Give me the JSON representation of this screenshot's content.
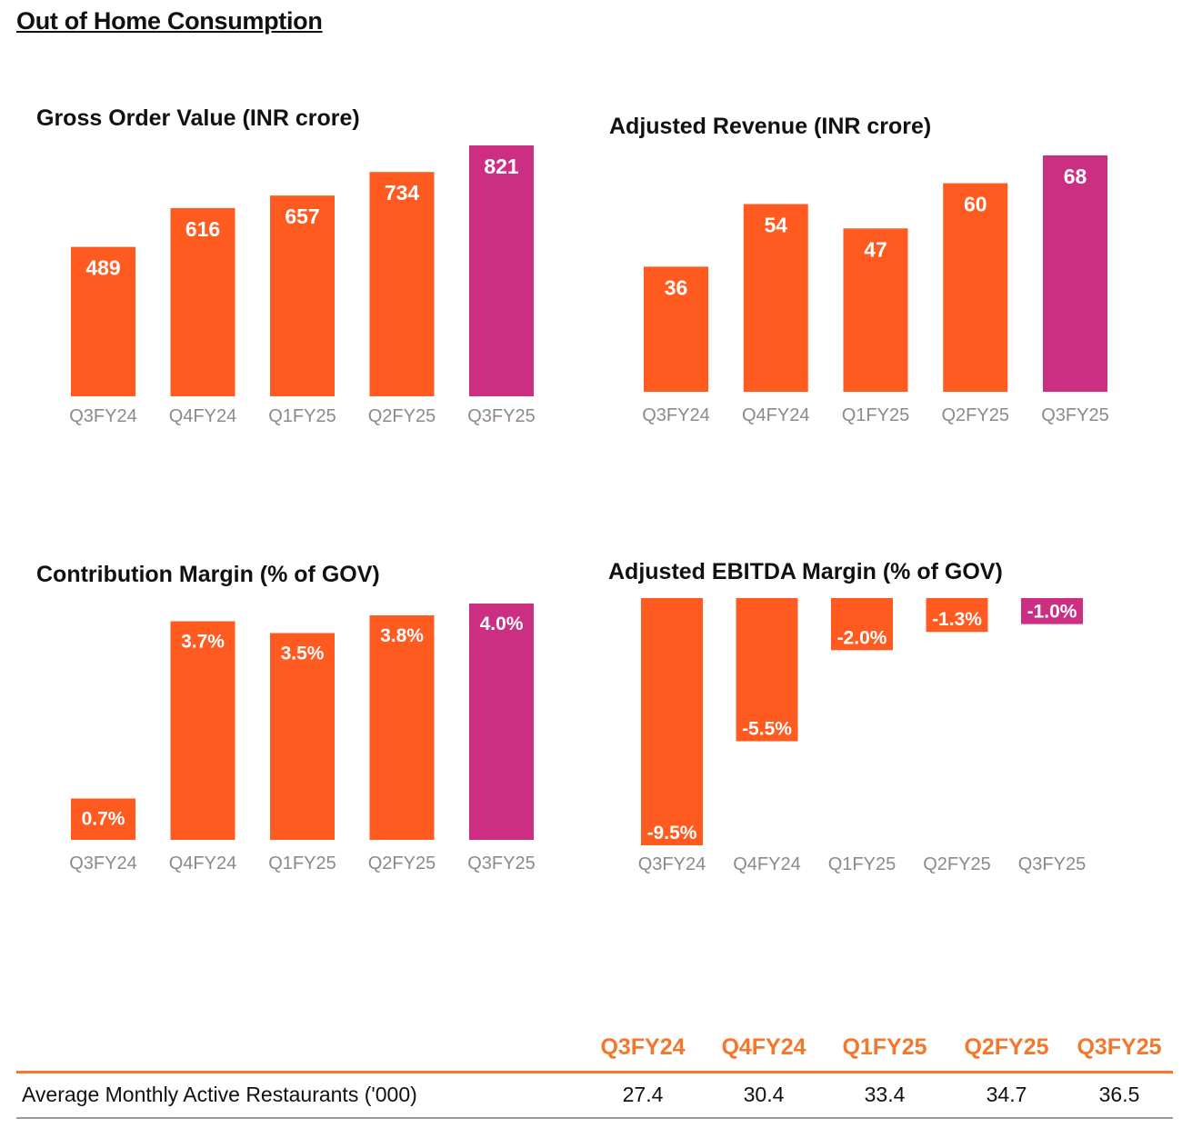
{
  "page_title": "Out of Home Consumption",
  "colors": {
    "bar": "#ff5a1f",
    "highlight": "#cc2f82",
    "axis_text": "#8a8a8a",
    "table_head": "#f5772c"
  },
  "chart_data": [
    {
      "type": "bar",
      "title": "Gross Order Value (INR crore)",
      "categories": [
        "Q3FY24",
        "Q4FY24",
        "Q1FY25",
        "Q2FY25",
        "Q3FY25"
      ],
      "values": [
        489,
        616,
        657,
        734,
        821
      ],
      "labels": [
        "489",
        "616",
        "657",
        "734",
        "821"
      ],
      "highlight_index": 4,
      "ylim": [
        0,
        821
      ]
    },
    {
      "type": "bar",
      "title": "Adjusted Revenue (INR crore)",
      "categories": [
        "Q3FY24",
        "Q4FY24",
        "Q1FY25",
        "Q2FY25",
        "Q3FY25"
      ],
      "values": [
        36,
        54,
        47,
        60,
        68
      ],
      "labels": [
        "36",
        "54",
        "47",
        "60",
        "68"
      ],
      "highlight_index": 4,
      "ylim": [
        0,
        68
      ]
    },
    {
      "type": "bar",
      "title": "Contribution Margin (% of GOV)",
      "categories": [
        "Q3FY24",
        "Q4FY24",
        "Q1FY25",
        "Q2FY25",
        "Q3FY25"
      ],
      "values": [
        0.7,
        3.7,
        3.5,
        3.8,
        4.0
      ],
      "labels": [
        "0.7%",
        "3.7%",
        "3.5%",
        "3.8%",
        "4.0%"
      ],
      "highlight_index": 4,
      "ylim": [
        0,
        4.0
      ]
    },
    {
      "type": "bar",
      "title": "Adjusted EBITDA Margin (% of GOV)",
      "categories": [
        "Q3FY24",
        "Q4FY24",
        "Q1FY25",
        "Q2FY25",
        "Q3FY25"
      ],
      "values": [
        -9.5,
        -5.5,
        -2.0,
        -1.3,
        -1.0
      ],
      "labels": [
        "-9.5%",
        "-5.5%",
        "-2.0%",
        "-1.3%",
        "-1.0%"
      ],
      "highlight_index": 4,
      "ylim": [
        -9.5,
        0
      ]
    }
  ],
  "table": {
    "columns": [
      "Q3FY24",
      "Q4FY24",
      "Q1FY25",
      "Q2FY25",
      "Q3FY25"
    ],
    "rows": [
      {
        "label": "Average Monthly Active Restaurants ('000)",
        "values": [
          "27.4",
          "30.4",
          "33.4",
          "34.7",
          "36.5"
        ]
      }
    ]
  }
}
